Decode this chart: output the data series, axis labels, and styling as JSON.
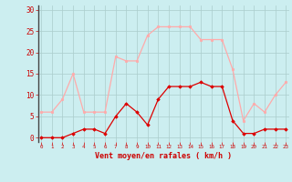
{
  "x": [
    0,
    1,
    2,
    3,
    4,
    5,
    6,
    7,
    8,
    9,
    10,
    11,
    12,
    13,
    14,
    15,
    16,
    17,
    18,
    19,
    20,
    21,
    22,
    23
  ],
  "rafales": [
    6,
    6,
    9,
    15,
    6,
    6,
    6,
    19,
    18,
    18,
    24,
    26,
    26,
    26,
    26,
    23,
    23,
    23,
    16,
    4,
    8,
    6,
    10,
    13
  ],
  "moyen": [
    0,
    0,
    0,
    1,
    2,
    2,
    1,
    5,
    8,
    6,
    3,
    9,
    12,
    12,
    12,
    13,
    12,
    12,
    4,
    1,
    1,
    2,
    2,
    2
  ],
  "bg_color": "#cceef0",
  "grid_color": "#aacccc",
  "line_color_rafales": "#ffaaaa",
  "line_color_moyen": "#dd0000",
  "xlabel": "Vent moyen/en rafales ( km/h )",
  "xlabel_color": "#cc0000",
  "tick_color": "#cc0000",
  "yticks": [
    0,
    5,
    10,
    15,
    20,
    25,
    30
  ],
  "xticks": [
    0,
    1,
    2,
    3,
    4,
    5,
    6,
    7,
    8,
    9,
    10,
    11,
    12,
    13,
    14,
    15,
    16,
    17,
    18,
    19,
    20,
    21,
    22,
    23
  ],
  "xlim": [
    -0.3,
    23.3
  ],
  "ylim": [
    -1,
    31
  ]
}
